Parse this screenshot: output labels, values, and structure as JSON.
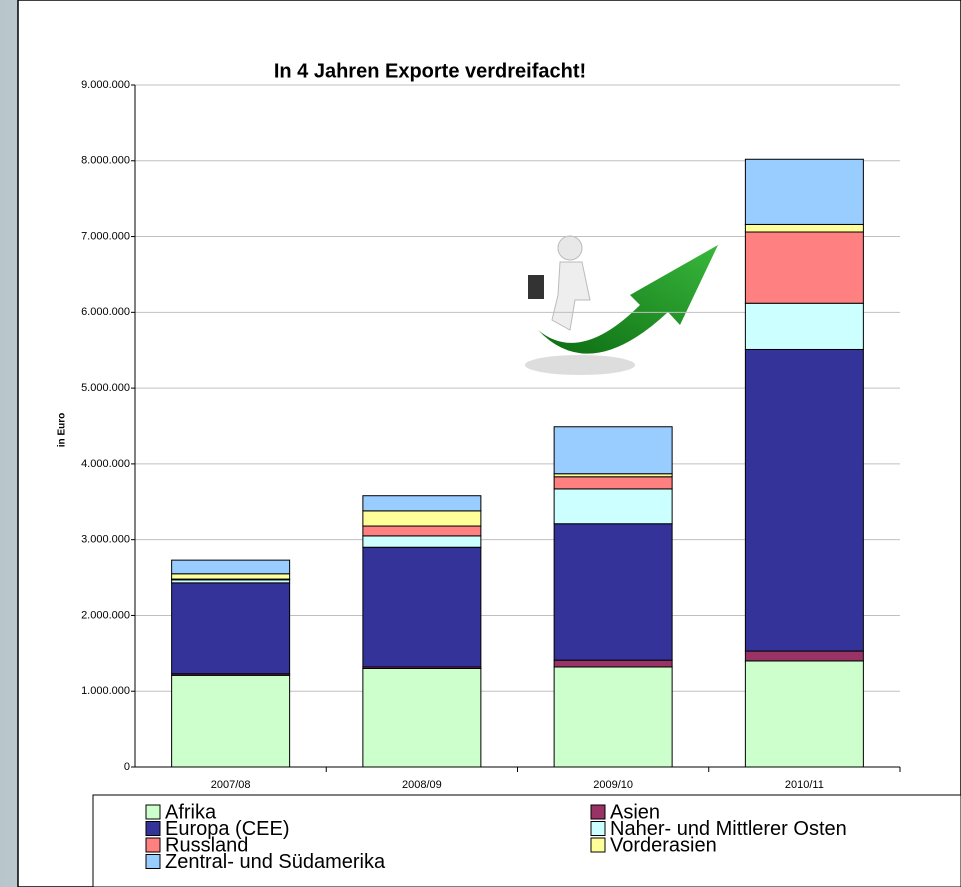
{
  "chart_data": {
    "type": "stacked_bar",
    "title": "In 4 Jahren Exporte verdreifacht!",
    "y_label": "in Euro",
    "categories": [
      "2007/08",
      "2008/09",
      "2009/10",
      "2010/11"
    ],
    "series": [
      {
        "name": "Afrika",
        "color": "#ccffcc",
        "values": [
          1210000,
          1300000,
          1320000,
          1400000
        ]
      },
      {
        "name": "Asien",
        "color": "#993366",
        "values": [
          20000,
          20000,
          90000,
          130000
        ]
      },
      {
        "name": "Europa (CEE)",
        "color": "#333399",
        "values": [
          1200000,
          1580000,
          1800000,
          3980000
        ]
      },
      {
        "name": "Naher- und Mittlerer Osten",
        "color": "#ccffff",
        "values": [
          40000,
          150000,
          460000,
          610000
        ]
      },
      {
        "name": "Russland",
        "color": "#ff8080",
        "values": [
          10000,
          130000,
          160000,
          940000
        ]
      },
      {
        "name": "Vorderasien",
        "color": "#ffff99",
        "values": [
          70000,
          200000,
          40000,
          100000
        ]
      },
      {
        "name": "Zentral- und Südamerika",
        "color": "#99ccff",
        "values": [
          180000,
          200000,
          620000,
          860000
        ]
      }
    ],
    "ylim": [
      0,
      9000000
    ],
    "yticks": [
      0,
      {
        "value": 1000000,
        "label": "1.000.000"
      },
      {
        "value": 2000000,
        "label": "2.000.000"
      },
      {
        "value": 3000000,
        "label": "3.000.000"
      },
      {
        "value": 4000000,
        "label": "4.000.000"
      },
      {
        "value": 5000000,
        "label": "5.000.000"
      },
      {
        "value": 6000000,
        "label": "6.000.000"
      },
      {
        "value": 7000000,
        "label": "7.000.000"
      },
      {
        "value": 8000000,
        "label": "8.000.000"
      },
      {
        "value": 9000000,
        "label": "9.000.000"
      }
    ],
    "grid": true
  }
}
